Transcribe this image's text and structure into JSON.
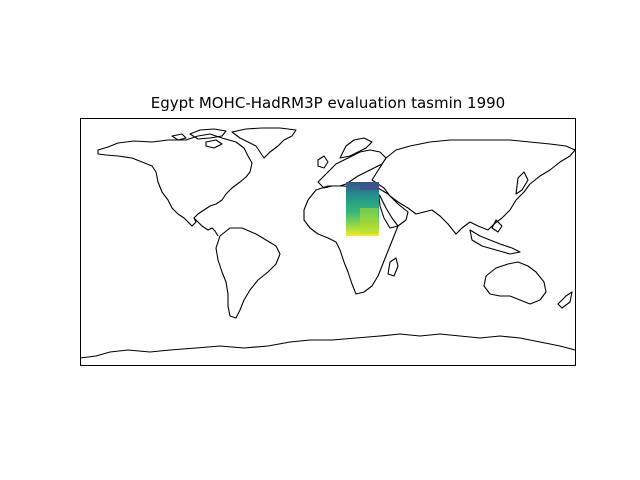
{
  "figure": {
    "title": "Egypt MOHC-HadRM3P evaluation tasmin 1990"
  },
  "map": {
    "projection": "PlateCarree",
    "extent": {
      "lon": [
        -180,
        180
      ],
      "lat": [
        -90,
        90
      ]
    },
    "coastline_color": "#000000",
    "frame_color": "#000000",
    "background_color": "#ffffff",
    "overlay": {
      "region": "Egypt",
      "model": "MOHC-HadRM3P",
      "experiment": "evaluation",
      "variable": "tasmin",
      "year": "1990",
      "colormap": "viridis",
      "bounds": {
        "lon": [
          25,
          37
        ],
        "lat": [
          21,
          32
        ]
      },
      "colors": {
        "low": "#3b528b",
        "mid_low": "#21918c",
        "mid": "#35b779",
        "mid_high": "#90d743",
        "high": "#fde725"
      }
    }
  }
}
